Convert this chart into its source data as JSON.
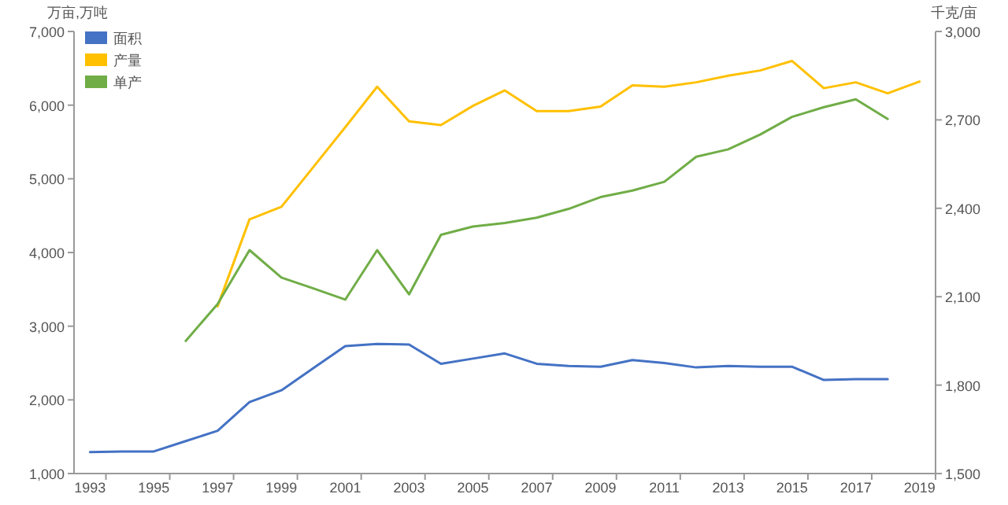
{
  "chart_data": {
    "type": "line",
    "ylabel": "万亩,万吨",
    "y2label": "千克/亩",
    "legend": "top left",
    "grid": false,
    "marker": "none",
    "line_style": "solid",
    "categories": [
      "1993",
      null,
      "1995",
      null,
      "1997",
      null,
      "1999",
      null,
      "2001",
      null,
      "2003",
      null,
      "2005",
      null,
      "2007",
      null,
      "2009",
      null,
      "2011",
      null,
      "2013",
      null,
      "2015",
      null,
      "2017",
      null,
      "2019"
    ],
    "ylim": [
      1000,
      7000
    ],
    "yticks": [
      {
        "value": 1000,
        "label": "1,000"
      },
      {
        "value": 2000,
        "label": "2,000"
      },
      {
        "value": 3000,
        "label": "3,000"
      },
      {
        "value": 4000,
        "label": "4,000"
      },
      {
        "value": 5000,
        "label": "5,000"
      },
      {
        "value": 6000,
        "label": "6,000"
      },
      {
        "value": 7000,
        "label": "7,000"
      }
    ],
    "y2lim": [
      1500,
      3000
    ],
    "y2ticks": [
      {
        "value": 1500,
        "label": "1,500"
      },
      {
        "value": 1800,
        "label": "1,800"
      },
      {
        "value": 2100,
        "label": "2,100"
      },
      {
        "value": 2400,
        "label": "2,400"
      },
      {
        "value": 2700,
        "label": "2,700"
      },
      {
        "value": 3000,
        "label": "3,000"
      }
    ],
    "series": [
      {
        "name": "面积",
        "color": "#4472c4",
        "values": [
          1290,
          1300,
          1300,
          1440,
          1580,
          1970,
          2130,
          2430,
          2730,
          2760,
          2750,
          2490,
          2560,
          2630,
          2490,
          2460,
          2450,
          2540,
          2500,
          2440,
          2460,
          2450,
          2450,
          2270,
          2280,
          2280,
          null
        ]
      },
      {
        "name": "产量",
        "color": "#ffc000",
        "values": [
          null,
          null,
          null,
          null,
          3270,
          4450,
          4620,
          5160,
          5700,
          6250,
          5780,
          5730,
          5990,
          6200,
          5920,
          5920,
          5980,
          6270,
          6250,
          6310,
          6400,
          6470,
          6600,
          6230,
          6310,
          6160,
          6320
        ]
      },
      {
        "name": "单产",
        "color": "#70ad47",
        "axis": "y2",
        "values": [
          null,
          null,
          null,
          1950,
          2075,
          2258,
          2165,
          2128,
          2090,
          2258,
          2108,
          2310,
          2338,
          2350,
          2368,
          2398,
          2438,
          2460,
          2490,
          2575,
          2600,
          2650,
          2710,
          2743,
          2770,
          2703,
          null
        ]
      }
    ]
  }
}
